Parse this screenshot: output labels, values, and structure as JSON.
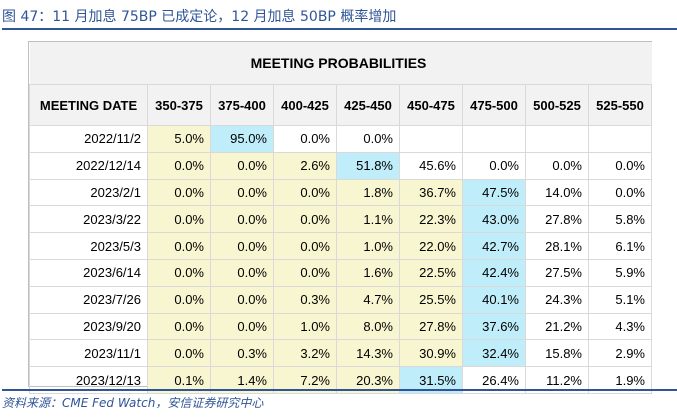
{
  "figure": {
    "title": "图 47：11 月加息 75BP 已成定论，12 月加息 50BP 概率增加",
    "source": "资料来源：CME Fed Watch，安信证券研究中心"
  },
  "table": {
    "banner": "MEETING PROBABILITIES",
    "columns": [
      "MEETING DATE",
      "350-375",
      "375-400",
      "400-425",
      "425-450",
      "450-475",
      "475-500",
      "500-525",
      "525-550"
    ],
    "rows": [
      {
        "date": "2022/11/2",
        "values": [
          "5.0%",
          "95.0%",
          "0.0%",
          "0.0%",
          "",
          "",
          "",
          ""
        ],
        "shade": [
          "y",
          "b",
          "w",
          "w",
          "w",
          "w",
          "w",
          "w"
        ]
      },
      {
        "date": "2022/12/14",
        "values": [
          "0.0%",
          "0.0%",
          "2.6%",
          "51.8%",
          "45.6%",
          "0.0%",
          "0.0%",
          "0.0%"
        ],
        "shade": [
          "y",
          "y",
          "y",
          "b",
          "w",
          "w",
          "w",
          "w"
        ]
      },
      {
        "date": "2023/2/1",
        "values": [
          "0.0%",
          "0.0%",
          "0.0%",
          "1.8%",
          "36.7%",
          "47.5%",
          "14.0%",
          "0.0%"
        ],
        "shade": [
          "y",
          "y",
          "y",
          "y",
          "y",
          "b",
          "w",
          "w"
        ]
      },
      {
        "date": "2023/3/22",
        "values": [
          "0.0%",
          "0.0%",
          "0.0%",
          "1.1%",
          "22.3%",
          "43.0%",
          "27.8%",
          "5.8%"
        ],
        "shade": [
          "y",
          "y",
          "y",
          "y",
          "y",
          "b",
          "w",
          "w"
        ]
      },
      {
        "date": "2023/5/3",
        "values": [
          "0.0%",
          "0.0%",
          "0.0%",
          "1.0%",
          "22.0%",
          "42.7%",
          "28.1%",
          "6.1%"
        ],
        "shade": [
          "y",
          "y",
          "y",
          "y",
          "y",
          "b",
          "w",
          "w"
        ]
      },
      {
        "date": "2023/6/14",
        "values": [
          "0.0%",
          "0.0%",
          "0.0%",
          "1.6%",
          "22.5%",
          "42.4%",
          "27.5%",
          "5.9%"
        ],
        "shade": [
          "y",
          "y",
          "y",
          "y",
          "y",
          "b",
          "w",
          "w"
        ]
      },
      {
        "date": "2023/7/26",
        "values": [
          "0.0%",
          "0.0%",
          "0.3%",
          "4.7%",
          "25.5%",
          "40.1%",
          "24.3%",
          "5.1%"
        ],
        "shade": [
          "y",
          "y",
          "y",
          "y",
          "y",
          "b",
          "w",
          "w"
        ]
      },
      {
        "date": "2023/9/20",
        "values": [
          "0.0%",
          "0.0%",
          "1.0%",
          "8.0%",
          "27.8%",
          "37.6%",
          "21.2%",
          "4.3%"
        ],
        "shade": [
          "y",
          "y",
          "y",
          "y",
          "y",
          "b",
          "w",
          "w"
        ]
      },
      {
        "date": "2023/11/1",
        "values": [
          "0.0%",
          "0.3%",
          "3.2%",
          "14.3%",
          "30.9%",
          "32.4%",
          "15.8%",
          "2.9%"
        ],
        "shade": [
          "y",
          "y",
          "y",
          "y",
          "y",
          "b",
          "w",
          "w"
        ]
      },
      {
        "date": "2023/12/13",
        "values": [
          "0.1%",
          "1.4%",
          "7.2%",
          "20.3%",
          "31.5%",
          "26.4%",
          "11.2%",
          "1.9%"
        ],
        "shade": [
          "y",
          "y",
          "y",
          "y",
          "b",
          "w",
          "w",
          "w"
        ]
      }
    ]
  },
  "colors": {
    "accent": "#2f5597",
    "header_bg": "#f2f2f2",
    "cell_yellow": "#f7f6d0",
    "cell_blue": "#bfeefa",
    "grid": "#d9d9d9"
  }
}
